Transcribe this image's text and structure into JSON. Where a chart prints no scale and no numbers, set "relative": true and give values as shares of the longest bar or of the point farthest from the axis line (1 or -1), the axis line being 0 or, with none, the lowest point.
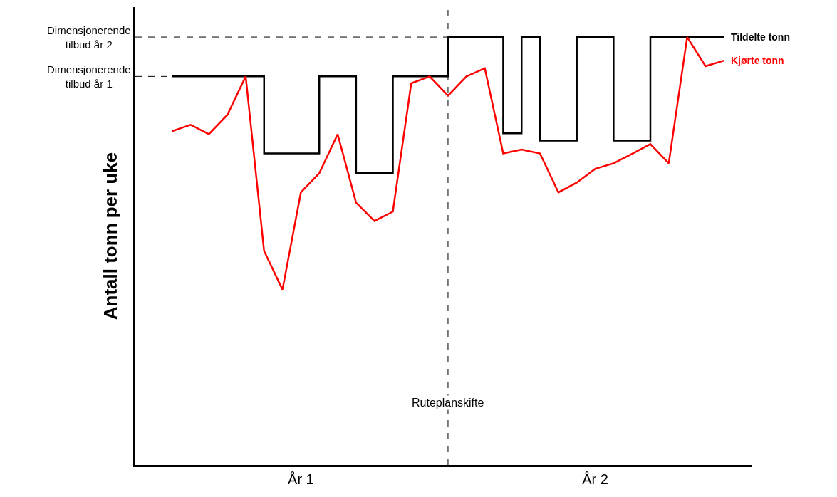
{
  "chart_data": {
    "type": "line",
    "relative": true,
    "ylabel": "Antall tonn per uke",
    "legend": false,
    "annotations": [
      "Ruteplanskifte"
    ],
    "categories": [
      null,
      null,
      null,
      null,
      null,
      null,
      null,
      "År 1",
      null,
      null,
      null,
      null,
      null,
      null,
      null,
      null,
      null,
      null,
      null,
      null,
      null,
      null,
      null,
      "År 2",
      null,
      null,
      null,
      null,
      null,
      null,
      null
    ],
    "series": [
      {
        "name": "Tildelte tonn",
        "type": "step",
        "color": "#000000",
        "values": [
          0.908,
          0.908,
          0.908,
          0.908,
          0.908,
          0.728,
          0.728,
          0.728,
          0.908,
          0.908,
          0.682,
          0.682,
          0.908,
          0.908,
          0.908,
          1,
          1,
          1,
          0.775,
          1,
          0.758,
          0.758,
          1,
          1,
          0.758,
          0.758,
          1,
          1,
          1,
          1,
          1
        ]
      },
      {
        "name": "Kjørte tonn",
        "color": "#ff0000",
        "values": [
          0.78,
          0.795,
          0.773,
          0.818,
          0.908,
          0.5,
          0.41,
          0.637,
          0.682,
          0.773,
          0.613,
          0.57,
          0.592,
          0.892,
          0.908,
          0.863,
          0.908,
          0.927,
          0.728,
          0.737,
          0.728,
          0.637,
          0.66,
          0.692,
          0.705,
          0.727,
          0.75,
          0.705,
          1,
          0.932,
          0.945
        ]
      }
    ],
    "ref_lines": [
      {
        "axis": "y",
        "value": 1,
        "label": "Dimensjonerende\ntilbud år 2",
        "line_style": "dashed",
        "color": "#000000"
      },
      {
        "axis": "y",
        "value": 0.908,
        "label": "Dimensjonerende\ntilbud år 1",
        "line_style": "dashed",
        "color": "#000000"
      }
    ]
  }
}
